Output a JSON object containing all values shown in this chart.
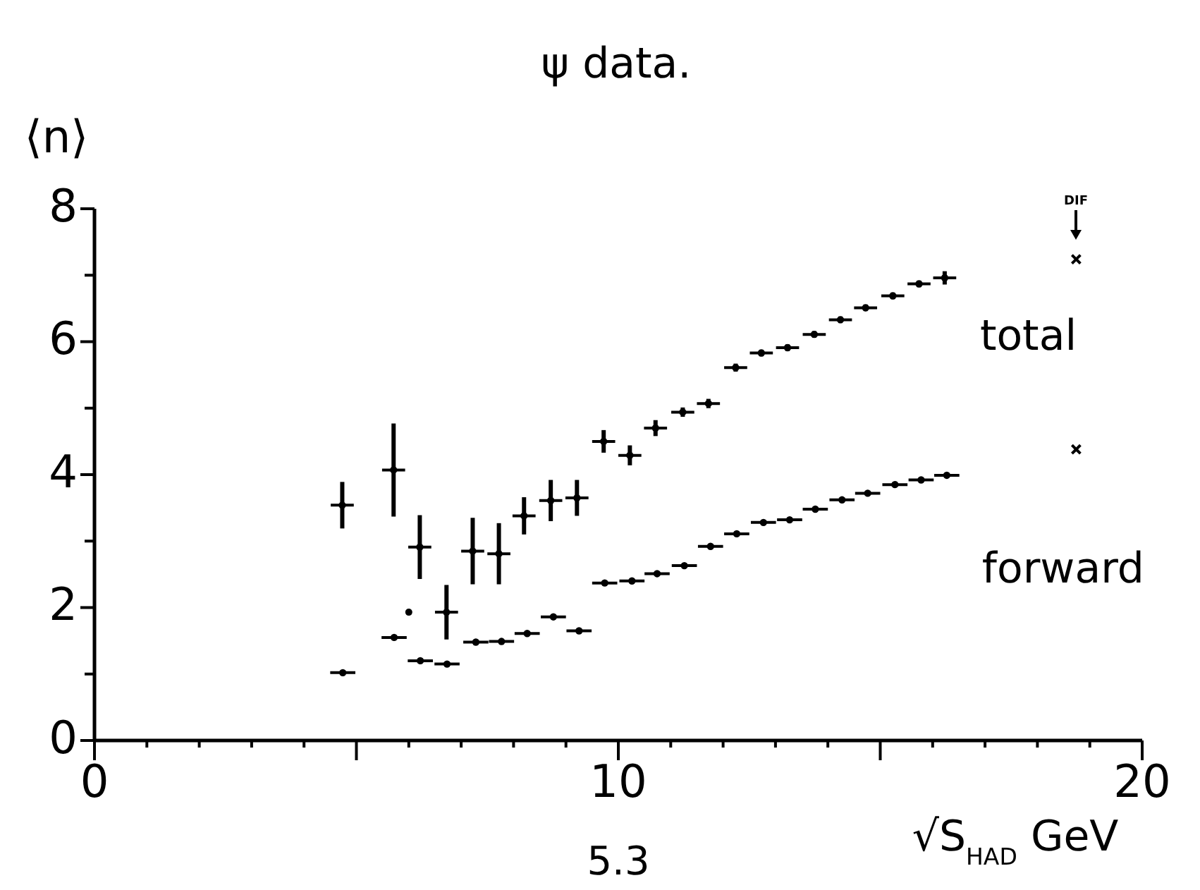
{
  "chart_data": {
    "type": "scatter",
    "title": "ψ data.",
    "xlabel": "√S$_{HAD}$ GeV",
    "ylabel": "⟨n⟩",
    "xlim": [
      0,
      20
    ],
    "ylim": [
      0,
      8
    ],
    "xticks": [
      0,
      {
        "value": 1,
        "label": null
      },
      {
        "value": 2,
        "label": null
      },
      {
        "value": 3,
        "label": null
      },
      {
        "value": 4,
        "label": null
      },
      {
        "value": 5,
        "label": null
      },
      {
        "value": 6,
        "label": null
      },
      {
        "value": 7,
        "label": null
      },
      {
        "value": 8,
        "label": null
      },
      {
        "value": 9,
        "label": null
      },
      10,
      {
        "value": 11,
        "label": null
      },
      {
        "value": 12,
        "label": null
      },
      {
        "value": 13,
        "label": null
      },
      {
        "value": 14,
        "label": null
      },
      {
        "value": 15,
        "label": null
      },
      {
        "value": 16,
        "label": null
      },
      {
        "value": 17,
        "label": null
      },
      {
        "value": 18,
        "label": null
      },
      {
        "value": 19,
        "label": null
      },
      20
    ],
    "yticks": [
      0,
      {
        "value": 1,
        "label": null
      },
      2,
      {
        "value": 3,
        "label": null
      },
      4,
      {
        "value": 5,
        "label": null
      },
      6,
      {
        "value": 7,
        "label": null
      },
      8
    ],
    "grid": false,
    "series": [
      {
        "name": "total",
        "color": "#000000",
        "x": [
          4.73,
          5.71,
          6.21,
          6.72,
          7.22,
          7.72,
          8.2,
          8.71,
          9.21,
          9.72,
          10.22,
          10.71,
          11.23,
          11.72,
          12.24,
          12.73,
          13.23,
          13.74,
          14.24,
          14.72,
          15.24,
          15.74,
          16.23
        ],
        "values": [
          3.54,
          4.07,
          2.91,
          1.93,
          2.85,
          2.81,
          3.38,
          3.61,
          3.65,
          4.5,
          4.29,
          4.7,
          4.94,
          5.07,
          5.61,
          5.83,
          5.91,
          6.11,
          6.33,
          6.51,
          6.69,
          6.87,
          6.96
        ],
        "errors": [
          0.35,
          0.7,
          0.48,
          0.41,
          0.5,
          0.46,
          0.28,
          0.31,
          0.27,
          0.17,
          0.15,
          0.12,
          0.07,
          0.07,
          0.06,
          0.05,
          0.05,
          0.05,
          0.05,
          0.05,
          0.05,
          0.05,
          0.1
        ],
        "xerrors": [
          0.22,
          0.22,
          0.22,
          0.22,
          0.22,
          0.22,
          0.22,
          0.22,
          0.22,
          0.22,
          0.22,
          0.22,
          0.22,
          0.22,
          0.22,
          0.22,
          0.22,
          0.22,
          0.22,
          0.22,
          0.22,
          0.22,
          0.22
        ]
      },
      {
        "name": "forward",
        "color": "#000000",
        "x": [
          4.74,
          5.72,
          6.22,
          6.73,
          7.28,
          7.77,
          8.26,
          8.76,
          9.25,
          9.74,
          10.26,
          10.74,
          11.26,
          11.76,
          12.26,
          12.77,
          13.27,
          13.76,
          14.27,
          14.76,
          15.28,
          15.78,
          16.27
        ],
        "values": [
          1.02,
          1.55,
          1.2,
          1.15,
          1.48,
          1.49,
          1.61,
          1.86,
          1.65,
          2.37,
          2.4,
          2.51,
          2.63,
          2.92,
          3.11,
          3.28,
          3.32,
          3.48,
          3.62,
          3.72,
          3.85,
          3.92,
          3.99
        ],
        "xerrors": [
          0.24,
          0.24,
          0.24,
          0.24,
          0.24,
          0.24,
          0.24,
          0.24,
          0.24,
          0.24,
          0.24,
          0.24,
          0.24,
          0.24,
          0.24,
          0.24,
          0.24,
          0.24,
          0.24,
          0.24,
          0.24,
          0.24,
          0.24
        ]
      },
      {
        "color": "#000000",
        "marker": "circle",
        "x": [
          6.0
        ],
        "values": [
          1.93
        ]
      },
      {
        "color": "#000000",
        "marker": "cross",
        "x": [
          18.74,
          18.74
        ],
        "values": [
          7.24,
          4.38
        ]
      }
    ],
    "annotations": [
      "DIF",
      "5.3"
    ]
  }
}
